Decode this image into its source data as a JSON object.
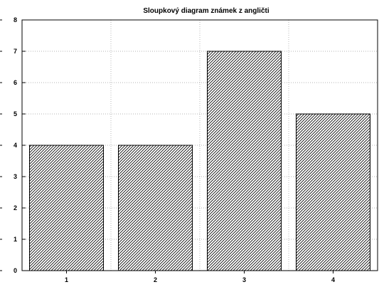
{
  "chart_data": {
    "type": "bar",
    "title": "Sloupkový diagram známek z angličti",
    "xlabel": "",
    "ylabel": "",
    "categories": [
      "1",
      "2",
      "3",
      "4"
    ],
    "values": [
      4,
      4,
      7,
      5
    ],
    "ylim": [
      0,
      8
    ],
    "yticks": [
      "0",
      "1",
      "2",
      "3",
      "4",
      "5",
      "6",
      "7",
      "8"
    ],
    "grid": true,
    "bar_fill": "diagonal-hatch",
    "colors": {
      "bar_stroke": "#000000",
      "hatch": "#000000",
      "grid": "#9a9a9a",
      "background": "#ffffff"
    }
  }
}
